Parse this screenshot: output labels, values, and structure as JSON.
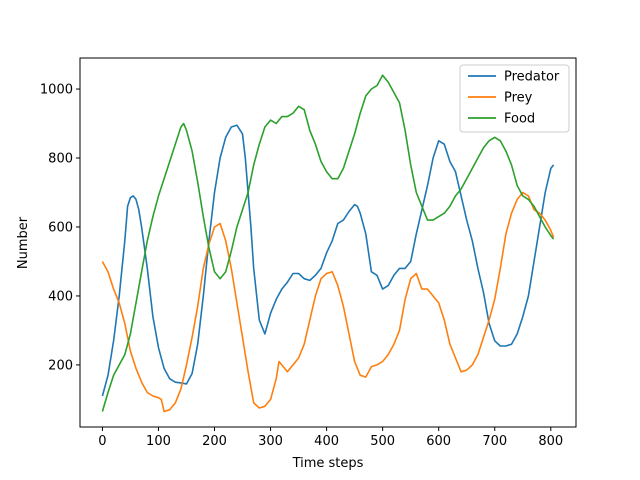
{
  "chart_data": {
    "type": "line",
    "xlabel": "Time steps",
    "ylabel": "Number",
    "xlim": [
      -40,
      845
    ],
    "ylim": [
      20,
      1090
    ],
    "xticks": [
      0,
      100,
      200,
      300,
      400,
      500,
      600,
      700,
      800
    ],
    "yticks": [
      200,
      400,
      600,
      800,
      1000
    ],
    "legend_position": "upper right",
    "grid": false,
    "series": [
      {
        "name": "Predator",
        "color": "#1f77b4",
        "points": [
          [
            0,
            110
          ],
          [
            10,
            170
          ],
          [
            20,
            270
          ],
          [
            30,
            400
          ],
          [
            40,
            560
          ],
          [
            45,
            660
          ],
          [
            50,
            685
          ],
          [
            55,
            690
          ],
          [
            60,
            680
          ],
          [
            65,
            650
          ],
          [
            70,
            600
          ],
          [
            80,
            480
          ],
          [
            90,
            340
          ],
          [
            100,
            250
          ],
          [
            110,
            190
          ],
          [
            120,
            160
          ],
          [
            130,
            150
          ],
          [
            140,
            148
          ],
          [
            150,
            145
          ],
          [
            160,
            175
          ],
          [
            170,
            260
          ],
          [
            180,
            400
          ],
          [
            190,
            560
          ],
          [
            200,
            700
          ],
          [
            210,
            800
          ],
          [
            220,
            860
          ],
          [
            230,
            890
          ],
          [
            240,
            895
          ],
          [
            250,
            870
          ],
          [
            255,
            800
          ],
          [
            260,
            700
          ],
          [
            265,
            600
          ],
          [
            270,
            480
          ],
          [
            280,
            330
          ],
          [
            290,
            290
          ],
          [
            300,
            350
          ],
          [
            310,
            390
          ],
          [
            320,
            420
          ],
          [
            330,
            440
          ],
          [
            340,
            465
          ],
          [
            350,
            465
          ],
          [
            360,
            450
          ],
          [
            370,
            445
          ],
          [
            380,
            460
          ],
          [
            390,
            480
          ],
          [
            400,
            525
          ],
          [
            410,
            560
          ],
          [
            420,
            610
          ],
          [
            430,
            620
          ],
          [
            440,
            645
          ],
          [
            450,
            665
          ],
          [
            455,
            660
          ],
          [
            460,
            640
          ],
          [
            470,
            580
          ],
          [
            480,
            470
          ],
          [
            490,
            460
          ],
          [
            500,
            420
          ],
          [
            510,
            430
          ],
          [
            520,
            460
          ],
          [
            530,
            480
          ],
          [
            540,
            480
          ],
          [
            550,
            500
          ],
          [
            560,
            580
          ],
          [
            570,
            650
          ],
          [
            580,
            720
          ],
          [
            590,
            800
          ],
          [
            600,
            850
          ],
          [
            610,
            840
          ],
          [
            620,
            790
          ],
          [
            630,
            760
          ],
          [
            640,
            690
          ],
          [
            650,
            620
          ],
          [
            660,
            560
          ],
          [
            670,
            480
          ],
          [
            680,
            410
          ],
          [
            690,
            320
          ],
          [
            700,
            270
          ],
          [
            710,
            255
          ],
          [
            720,
            255
          ],
          [
            730,
            260
          ],
          [
            740,
            290
          ],
          [
            750,
            340
          ],
          [
            760,
            400
          ],
          [
            770,
            500
          ],
          [
            780,
            600
          ],
          [
            790,
            700
          ],
          [
            800,
            770
          ],
          [
            805,
            780
          ]
        ]
      },
      {
        "name": "Prey",
        "color": "#ff7f0e",
        "points": [
          [
            0,
            500
          ],
          [
            10,
            470
          ],
          [
            20,
            420
          ],
          [
            30,
            380
          ],
          [
            40,
            320
          ],
          [
            50,
            240
          ],
          [
            60,
            190
          ],
          [
            70,
            150
          ],
          [
            80,
            120
          ],
          [
            90,
            110
          ],
          [
            100,
            105
          ],
          [
            105,
            100
          ],
          [
            110,
            65
          ],
          [
            120,
            70
          ],
          [
            130,
            90
          ],
          [
            140,
            130
          ],
          [
            150,
            200
          ],
          [
            160,
            280
          ],
          [
            170,
            370
          ],
          [
            180,
            480
          ],
          [
            190,
            550
          ],
          [
            200,
            600
          ],
          [
            210,
            610
          ],
          [
            220,
            560
          ],
          [
            230,
            480
          ],
          [
            240,
            380
          ],
          [
            250,
            280
          ],
          [
            260,
            180
          ],
          [
            270,
            90
          ],
          [
            280,
            75
          ],
          [
            290,
            80
          ],
          [
            300,
            100
          ],
          [
            310,
            160
          ],
          [
            315,
            210
          ],
          [
            320,
            200
          ],
          [
            330,
            180
          ],
          [
            340,
            200
          ],
          [
            350,
            220
          ],
          [
            360,
            260
          ],
          [
            370,
            330
          ],
          [
            380,
            400
          ],
          [
            390,
            450
          ],
          [
            400,
            465
          ],
          [
            410,
            470
          ],
          [
            420,
            430
          ],
          [
            430,
            370
          ],
          [
            440,
            290
          ],
          [
            450,
            210
          ],
          [
            460,
            170
          ],
          [
            470,
            165
          ],
          [
            480,
            195
          ],
          [
            490,
            200
          ],
          [
            500,
            210
          ],
          [
            510,
            230
          ],
          [
            520,
            260
          ],
          [
            530,
            300
          ],
          [
            540,
            390
          ],
          [
            550,
            450
          ],
          [
            560,
            465
          ],
          [
            570,
            420
          ],
          [
            580,
            420
          ],
          [
            590,
            400
          ],
          [
            600,
            380
          ],
          [
            610,
            330
          ],
          [
            620,
            260
          ],
          [
            630,
            220
          ],
          [
            640,
            180
          ],
          [
            650,
            185
          ],
          [
            660,
            200
          ],
          [
            670,
            230
          ],
          [
            680,
            280
          ],
          [
            690,
            330
          ],
          [
            700,
            390
          ],
          [
            710,
            480
          ],
          [
            720,
            580
          ],
          [
            730,
            640
          ],
          [
            740,
            680
          ],
          [
            750,
            700
          ],
          [
            760,
            690
          ],
          [
            770,
            650
          ],
          [
            780,
            640
          ],
          [
            790,
            620
          ],
          [
            800,
            590
          ],
          [
            805,
            570
          ]
        ]
      },
      {
        "name": "Food",
        "color": "#2ca02c",
        "points": [
          [
            0,
            65
          ],
          [
            10,
            120
          ],
          [
            20,
            170
          ],
          [
            30,
            200
          ],
          [
            40,
            230
          ],
          [
            50,
            290
          ],
          [
            60,
            380
          ],
          [
            70,
            470
          ],
          [
            80,
            560
          ],
          [
            90,
            630
          ],
          [
            100,
            690
          ],
          [
            110,
            740
          ],
          [
            120,
            790
          ],
          [
            130,
            840
          ],
          [
            140,
            890
          ],
          [
            145,
            900
          ],
          [
            150,
            880
          ],
          [
            160,
            820
          ],
          [
            170,
            730
          ],
          [
            180,
            630
          ],
          [
            190,
            540
          ],
          [
            200,
            470
          ],
          [
            210,
            450
          ],
          [
            220,
            470
          ],
          [
            230,
            530
          ],
          [
            240,
            600
          ],
          [
            250,
            650
          ],
          [
            260,
            700
          ],
          [
            270,
            780
          ],
          [
            280,
            840
          ],
          [
            290,
            890
          ],
          [
            300,
            910
          ],
          [
            310,
            900
          ],
          [
            320,
            920
          ],
          [
            330,
            920
          ],
          [
            340,
            930
          ],
          [
            350,
            950
          ],
          [
            360,
            940
          ],
          [
            370,
            880
          ],
          [
            380,
            840
          ],
          [
            390,
            790
          ],
          [
            400,
            760
          ],
          [
            410,
            740
          ],
          [
            420,
            740
          ],
          [
            430,
            770
          ],
          [
            440,
            820
          ],
          [
            450,
            870
          ],
          [
            460,
            930
          ],
          [
            470,
            980
          ],
          [
            480,
            1000
          ],
          [
            490,
            1010
          ],
          [
            500,
            1040
          ],
          [
            510,
            1020
          ],
          [
            520,
            990
          ],
          [
            530,
            960
          ],
          [
            540,
            880
          ],
          [
            550,
            780
          ],
          [
            560,
            700
          ],
          [
            570,
            660
          ],
          [
            580,
            620
          ],
          [
            590,
            620
          ],
          [
            600,
            630
          ],
          [
            610,
            640
          ],
          [
            620,
            660
          ],
          [
            630,
            690
          ],
          [
            640,
            710
          ],
          [
            650,
            740
          ],
          [
            660,
            770
          ],
          [
            670,
            800
          ],
          [
            680,
            830
          ],
          [
            690,
            850
          ],
          [
            700,
            860
          ],
          [
            710,
            850
          ],
          [
            720,
            820
          ],
          [
            730,
            780
          ],
          [
            740,
            720
          ],
          [
            750,
            690
          ],
          [
            760,
            680
          ],
          [
            770,
            660
          ],
          [
            780,
            630
          ],
          [
            790,
            600
          ],
          [
            800,
            575
          ],
          [
            805,
            565
          ]
        ]
      }
    ]
  }
}
